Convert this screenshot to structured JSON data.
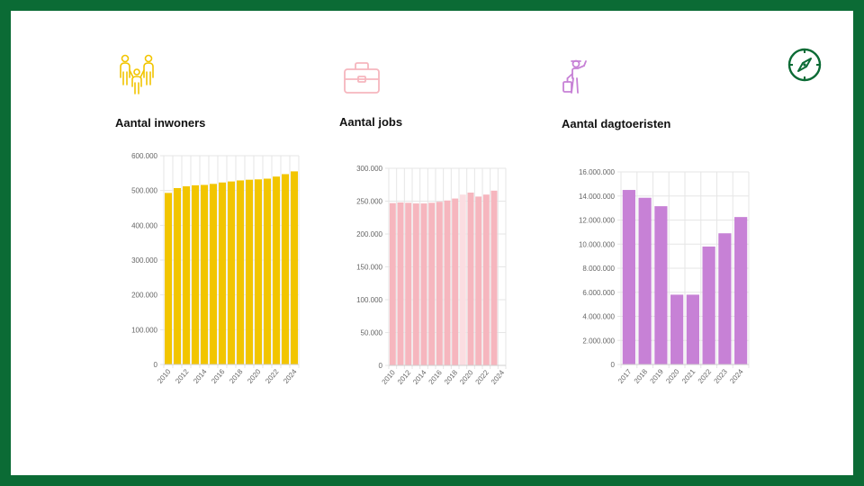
{
  "colors": {
    "frame": "#0b6b35",
    "inwoners": "#f2c500",
    "jobs": "#f6b6be",
    "jobs_highlight": "#fbdde1",
    "dagtoeristen": "#c781d6",
    "grid": "#e6e6e6"
  },
  "icons": {
    "compass": "compass-icon",
    "inwoners": "people-family-icon",
    "jobs": "briefcase-icon",
    "dagtoeristen": "tourist-with-suitcase-icon"
  },
  "chart_data": [
    {
      "type": "bar",
      "title": "Aantal inwoners",
      "categories": [
        "2010",
        "2011",
        "2012",
        "2013",
        "2014",
        "2015",
        "2016",
        "2017",
        "2018",
        "2019",
        "2020",
        "2021",
        "2022",
        "2023",
        "2024"
      ],
      "tick_labels": [
        "2010",
        "",
        "2012",
        "",
        "2014",
        "",
        "2016",
        "",
        "2018",
        "",
        "2020",
        "",
        "2022",
        "",
        "2024"
      ],
      "values": [
        493000,
        507000,
        512000,
        515000,
        516000,
        519000,
        523000,
        526000,
        529000,
        531000,
        532000,
        534000,
        540000,
        547000,
        555000
      ],
      "ylim": [
        0,
        600000
      ],
      "yticks": [
        0,
        100000,
        200000,
        300000,
        400000,
        500000,
        600000
      ],
      "ytick_labels": [
        "0",
        "100.000",
        "200.000",
        "300.000",
        "400.000",
        "500.000",
        "600.000"
      ],
      "grid": true,
      "xlabel": "",
      "ylabel": ""
    },
    {
      "type": "bar",
      "title": "Aantal jobs",
      "categories": [
        "2010",
        "2011",
        "2012",
        "2013",
        "2014",
        "2015",
        "2016",
        "2017",
        "2018",
        "2019",
        "2020",
        "2021",
        "2022",
        "2023",
        "2024"
      ],
      "tick_labels": [
        "2010",
        "",
        "2012",
        "",
        "2014",
        "",
        "2016",
        "",
        "2018",
        "",
        "2020",
        "",
        "2022",
        "",
        "2024"
      ],
      "values": [
        247000,
        248000,
        247500,
        246500,
        246500,
        247500,
        249000,
        251000,
        254000,
        260000,
        263000,
        257000,
        260000,
        266000,
        0
      ],
      "ylim": [
        0,
        300000
      ],
      "yticks": [
        0,
        50000,
        100000,
        150000,
        200000,
        250000,
        300000
      ],
      "ytick_labels": [
        "0",
        "50.000",
        "100.000",
        "150.000",
        "200.000",
        "250.000",
        "300.000"
      ],
      "highlight_index": 9,
      "grid": true,
      "xlabel": "",
      "ylabel": ""
    },
    {
      "type": "bar",
      "title": "Aantal dagtoeristen",
      "categories": [
        "2017",
        "2018",
        "2019",
        "2020",
        "2021",
        "2022",
        "2023",
        "2024"
      ],
      "tick_labels": [
        "2017",
        "2018",
        "2019",
        "2020",
        "2021",
        "2022",
        "2023",
        "2024"
      ],
      "values": [
        14500000,
        13850000,
        13150000,
        5800000,
        5800000,
        9800000,
        10900000,
        12250000
      ],
      "ylim": [
        0,
        16000000
      ],
      "yticks": [
        0,
        2000000,
        4000000,
        6000000,
        8000000,
        10000000,
        12000000,
        14000000,
        16000000
      ],
      "ytick_labels": [
        "0",
        "2.000.000",
        "4.000.000",
        "6.000.000",
        "8.000.000",
        "10.000.000",
        "12.000.000",
        "14.000.000",
        "16.000.000"
      ],
      "grid": true,
      "xlabel": "",
      "ylabel": ""
    }
  ]
}
